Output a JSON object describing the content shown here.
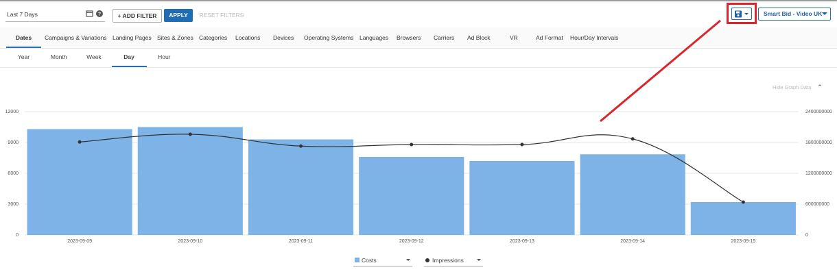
{
  "toolbar": {
    "date_range": "Last 7 Days",
    "add_filter": "+ ADD FILTER",
    "apply": "APPLY",
    "reset_filters": "RESET FILTERS",
    "account": "Smart Bid - Video UK"
  },
  "tabs": [
    {
      "label": "Dates",
      "active": true
    },
    {
      "label": "Campaigns & Variations"
    },
    {
      "label": "Landing Pages"
    },
    {
      "label": "Sites & Zones"
    },
    {
      "label": "Categories"
    },
    {
      "label": "Locations"
    },
    {
      "label": "Devices"
    },
    {
      "label": "Operating Systems"
    },
    {
      "label": "Languages"
    },
    {
      "label": "Browsers"
    },
    {
      "label": "Carriers"
    },
    {
      "label": "Ad Block"
    },
    {
      "label": "VR"
    },
    {
      "label": "Ad Format"
    },
    {
      "label": "Hour/Day Intervals"
    }
  ],
  "subtabs": [
    {
      "label": "Year"
    },
    {
      "label": "Month"
    },
    {
      "label": "Week"
    },
    {
      "label": "Day",
      "active": true
    },
    {
      "label": "Hour"
    }
  ],
  "hide_graph": "Hide Graph Data",
  "chart_data": {
    "type": "combo",
    "categories": [
      "2023-09-09",
      "2023-09-10",
      "2023-09-11",
      "2023-09-12",
      "2023-09-13",
      "2023-09-14",
      "2023-09-15"
    ],
    "series": [
      {
        "name": "Costs",
        "type": "bar",
        "color": "#7eb3e8",
        "values": [
          10300,
          10500,
          9300,
          7600,
          7200,
          7850,
          3200
        ]
      },
      {
        "name": "Impressions",
        "type": "line",
        "axis": "y2",
        "color": "#333333",
        "values": [
          1810000000,
          1960000000,
          1730000000,
          1760000000,
          1760000000,
          1870000000,
          640000000
        ]
      }
    ],
    "ylim": [
      0,
      12000
    ],
    "yticks": [
      0,
      3000,
      6000,
      9000,
      12000
    ],
    "y2lim": [
      0,
      2400000000
    ],
    "y2ticks": [
      0,
      600000000,
      1200000000,
      1800000000,
      2400000000
    ],
    "grid": true
  }
}
